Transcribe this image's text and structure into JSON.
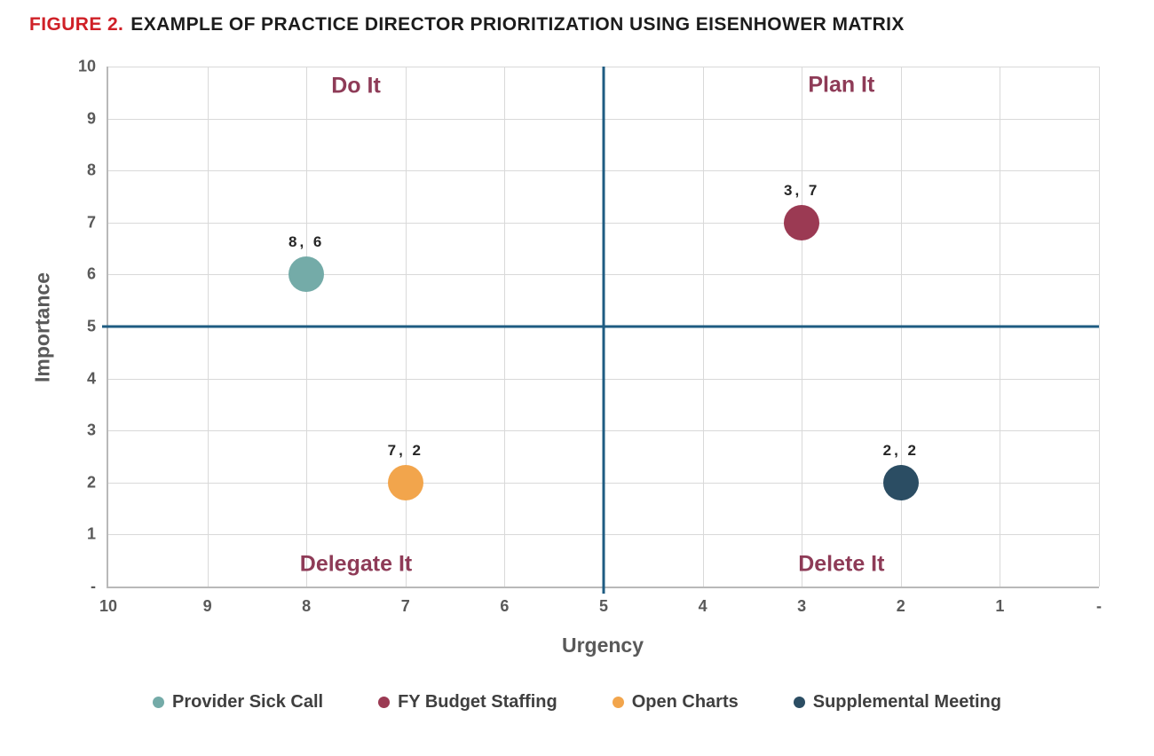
{
  "title": {
    "prefix": "FIGURE 2.",
    "text": "EXAMPLE OF PRACTICE DIRECTOR PRIORITIZATION USING EISENHOWER MATRIX"
  },
  "colors": {
    "title_accent": "#cf2027",
    "title_text": "#1c1c1c",
    "quadrant_label": "#8e3b57",
    "crosshair": "#1f5c82",
    "gridline": "#d9d9d9",
    "axis_line": "#b9b9b9",
    "tick_text": "#595959",
    "legend_text": "#3f3f3f"
  },
  "chart_data": {
    "type": "scatter",
    "title": "FIGURE 2. EXAMPLE OF PRACTICE DIRECTOR PRIORITIZATION USING EISENHOWER MATRIX",
    "xlabel": "Urgency",
    "ylabel": "Importance",
    "grid": true,
    "legend_position": "bottom",
    "x_axis": {
      "min": 0,
      "max": 10,
      "reversed": true,
      "tick_labels_left_to_right": [
        "10",
        "9",
        "8",
        "7",
        "6",
        "5",
        "4",
        "3",
        "2",
        "1",
        "-"
      ]
    },
    "y_axis": {
      "min": 0,
      "max": 10,
      "tick_labels_top_to_bottom": [
        "10",
        "9",
        "8",
        "7",
        "6",
        "5",
        "4",
        "3",
        "2",
        "1",
        "-"
      ]
    },
    "crosshair": {
      "x": 5,
      "y": 5
    },
    "quadrants": [
      {
        "id": "do-it",
        "label": "Do It",
        "position": "top-left"
      },
      {
        "id": "plan-it",
        "label": "Plan It",
        "position": "top-right"
      },
      {
        "id": "delegate-it",
        "label": "Delegate It",
        "position": "bottom-left"
      },
      {
        "id": "delete-it",
        "label": "Delete It",
        "position": "bottom-right"
      }
    ],
    "series": [
      {
        "name": "Provider Sick Call",
        "urgency": 8,
        "importance": 6,
        "data_label": "8, 6",
        "color": "#74aba8"
      },
      {
        "name": "FY Budget Staffing",
        "urgency": 3,
        "importance": 7,
        "data_label": "3, 7",
        "color": "#9b3a53"
      },
      {
        "name": "Open Charts",
        "urgency": 7,
        "importance": 2,
        "data_label": "7, 2",
        "color": "#f2a54c"
      },
      {
        "name": "Supplemental Meeting",
        "urgency": 2,
        "importance": 2,
        "data_label": "2, 2",
        "color": "#2b4d63"
      }
    ]
  }
}
